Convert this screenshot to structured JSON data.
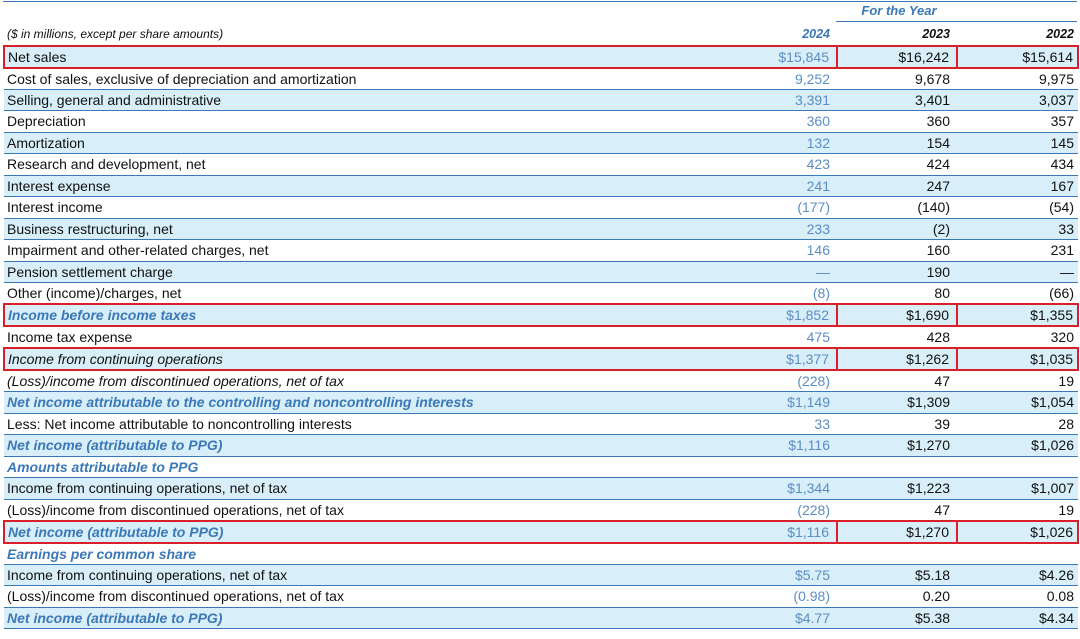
{
  "statement": {
    "period_header": "For the Year",
    "units_label": "($ in millions, except per share amounts)",
    "years": [
      "2024",
      "2023",
      "2022"
    ],
    "rows": [
      {
        "label": "Net sales",
        "y2024": "$15,845",
        "y2023": "$16,242",
        "y2022": "$15,614",
        "style": "normal",
        "highlighted": true
      },
      {
        "label": "Cost of sales, exclusive of depreciation and amortization",
        "y2024": "9,252",
        "y2023": "9,678",
        "y2022": "9,975",
        "style": "normal",
        "highlighted": false
      },
      {
        "label": "Selling, general and administrative",
        "y2024": "3,391",
        "y2023": "3,401",
        "y2022": "3,037",
        "style": "normal",
        "highlighted": false
      },
      {
        "label": "Depreciation",
        "y2024": "360",
        "y2023": "360",
        "y2022": "357",
        "style": "normal",
        "highlighted": false
      },
      {
        "label": "Amortization",
        "y2024": "132",
        "y2023": "154",
        "y2022": "145",
        "style": "normal",
        "highlighted": false
      },
      {
        "label": "Research and development, net",
        "y2024": "423",
        "y2023": "424",
        "y2022": "434",
        "style": "normal",
        "highlighted": false
      },
      {
        "label": "Interest expense",
        "y2024": "241",
        "y2023": "247",
        "y2022": "167",
        "style": "normal",
        "highlighted": false
      },
      {
        "label": "Interest income",
        "y2024": "(177)",
        "y2023": "(140)",
        "y2022": "(54)",
        "style": "normal",
        "highlighted": false
      },
      {
        "label": "Business restructuring, net",
        "y2024": "233",
        "y2023": "(2)",
        "y2022": "33",
        "style": "normal",
        "highlighted": false
      },
      {
        "label": "Impairment and other-related charges, net",
        "y2024": "146",
        "y2023": "160",
        "y2022": "231",
        "style": "normal",
        "highlighted": false
      },
      {
        "label": "Pension settlement charge",
        "y2024": "—",
        "y2023": "190",
        "y2022": "—",
        "style": "normal",
        "highlighted": false
      },
      {
        "label": "Other (income)/charges, net",
        "y2024": "(8)",
        "y2023": "80",
        "y2022": "(66)",
        "style": "normal",
        "highlighted": false
      },
      {
        "label": "Income before income taxes",
        "y2024": "$1,852",
        "y2023": "$1,690",
        "y2022": "$1,355",
        "style": "subtotal",
        "highlighted": true
      },
      {
        "label": "Income tax expense",
        "y2024": "475",
        "y2023": "428",
        "y2022": "320",
        "style": "normal",
        "highlighted": false
      },
      {
        "label": "Income from continuing operations",
        "y2024": "$1,377",
        "y2023": "$1,262",
        "y2022": "$1,035",
        "style": "italic",
        "highlighted": true
      },
      {
        "label": "(Loss)/income from discontinued operations, net of tax",
        "y2024": "(228)",
        "y2023": "47",
        "y2022": "19",
        "style": "italic",
        "highlighted": false
      },
      {
        "label": "Net income attributable to the controlling and noncontrolling interests",
        "y2024": "$1,149",
        "y2023": "$1,309",
        "y2022": "$1,054",
        "style": "subtotal",
        "highlighted": false
      },
      {
        "label": "Less: Net income attributable to noncontrolling interests",
        "y2024": "33",
        "y2023": "39",
        "y2022": "28",
        "style": "normal",
        "highlighted": false
      },
      {
        "label": "Net income (attributable to PPG)",
        "y2024": "$1,116",
        "y2023": "$1,270",
        "y2022": "$1,026",
        "style": "subtotal",
        "highlighted": false
      },
      {
        "label": "Amounts attributable to PPG",
        "y2024": "",
        "y2023": "",
        "y2022": "",
        "style": "section",
        "highlighted": false
      },
      {
        "label": "Income from continuing operations, net of tax",
        "y2024": "$1,344",
        "y2023": "$1,223",
        "y2022": "$1,007",
        "style": "normal",
        "highlighted": false
      },
      {
        "label": "(Loss)/income from discontinued operations, net of tax",
        "y2024": "(228)",
        "y2023": "47",
        "y2022": "19",
        "style": "normal",
        "highlighted": false
      },
      {
        "label": "Net income (attributable to PPG)",
        "y2024": "$1,116",
        "y2023": "$1,270",
        "y2022": "$1,026",
        "style": "subtotal",
        "highlighted": true
      },
      {
        "label": "Earnings per common share",
        "y2024": "",
        "y2023": "",
        "y2022": "",
        "style": "section",
        "highlighted": false
      },
      {
        "label": "Income from continuing operations, net of tax",
        "y2024": "$5.75",
        "y2023": "$5.18",
        "y2022": "$4.26",
        "style": "normal",
        "highlighted": false
      },
      {
        "label": "(Loss)/income from discontinued operations, net of tax",
        "y2024": "(0.98)",
        "y2023": "0.20",
        "y2022": "0.08",
        "style": "normal",
        "highlighted": false
      },
      {
        "label": "Net income (attributable to PPG)",
        "y2024": "$4.77",
        "y2023": "$5.38",
        "y2022": "$4.34",
        "style": "subtotal",
        "highlighted": false
      }
    ]
  },
  "colors": {
    "accent_blue": "#3a78b8",
    "current_year_blue": "#5b8ec4",
    "row_shade": "#d8eef8",
    "highlight_red": "#d9202a"
  }
}
